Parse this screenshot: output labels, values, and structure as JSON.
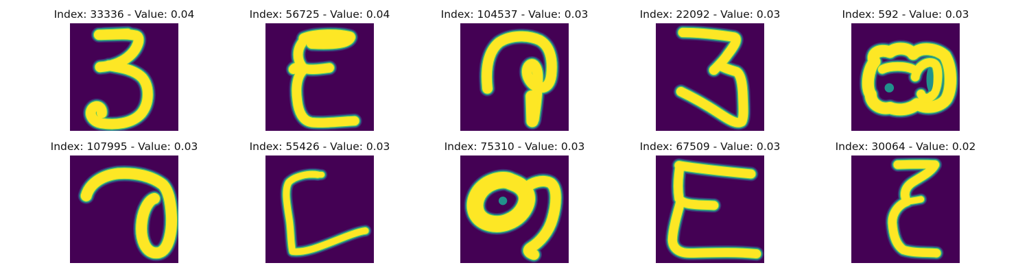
{
  "colors": {
    "background": "#440154",
    "stroke_core": "#fde725",
    "stroke_mid": "#5ec962",
    "stroke_edge": "#21918c",
    "stroke_outer": "#3b528b"
  },
  "panels": [
    {
      "title": "Index: 33336 - Value: 0.04",
      "glyph": "g0"
    },
    {
      "title": "Index: 56725 - Value: 0.04",
      "glyph": "g1"
    },
    {
      "title": "Index: 104537 - Value: 0.03",
      "glyph": "g2"
    },
    {
      "title": "Index: 22092 - Value: 0.03",
      "glyph": "g3"
    },
    {
      "title": "Index: 592 - Value: 0.03",
      "glyph": "g4"
    },
    {
      "title": "Index: 107995 - Value: 0.03",
      "glyph": "g5"
    },
    {
      "title": "Index: 55426 - Value: 0.03",
      "glyph": "g6"
    },
    {
      "title": "Index: 75310 - Value: 0.03",
      "glyph": "g7"
    },
    {
      "title": "Index: 67509 - Value: 0.03",
      "glyph": "g8"
    },
    {
      "title": "Index: 30064 - Value: 0.02",
      "glyph": "g9"
    }
  ]
}
